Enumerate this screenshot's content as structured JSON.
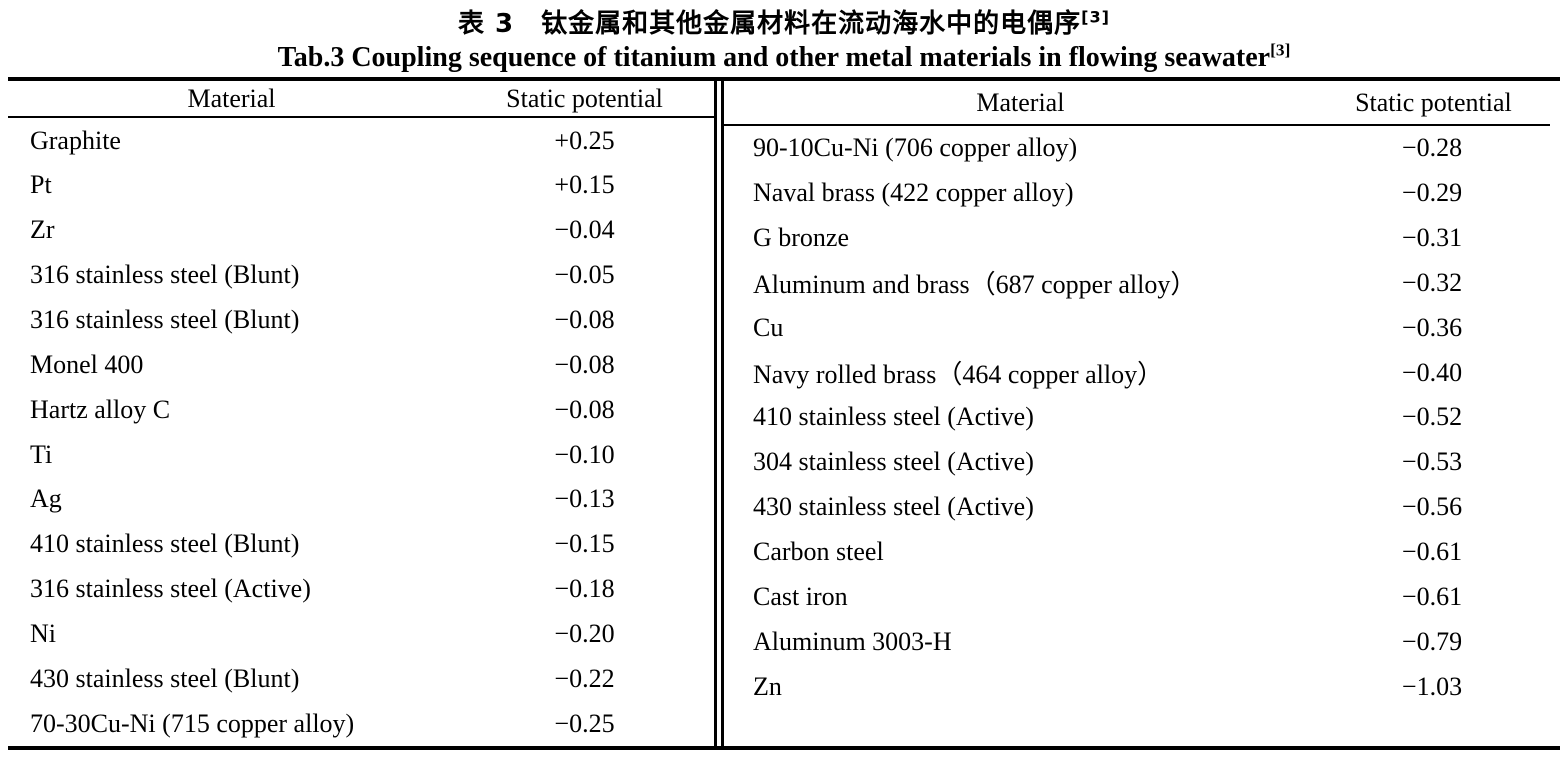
{
  "title": {
    "zh": "表 3　钛金属和其他金属材料在流动海水中的电偶序",
    "zh_ref": "[3]",
    "en": "Tab.3 Coupling sequence of titanium and other metal materials in flowing seawater",
    "en_ref": "[3]"
  },
  "table": {
    "headers": {
      "material": "Material",
      "potential": "Static potential"
    },
    "left_rows": [
      {
        "material": "Graphite",
        "potential": "+0.25"
      },
      {
        "material": "Pt",
        "potential": "+0.15"
      },
      {
        "material": "Zr",
        "potential": "−0.04"
      },
      {
        "material": "316 stainless steel (Blunt)",
        "potential": "−0.05"
      },
      {
        "material": "316 stainless steel (Blunt)",
        "potential": "−0.08"
      },
      {
        "material": "Monel 400",
        "potential": "−0.08"
      },
      {
        "material": "Hartz alloy C",
        "potential": "−0.08"
      },
      {
        "material": "Ti",
        "potential": "−0.10"
      },
      {
        "material": "Ag",
        "potential": "−0.13"
      },
      {
        "material": "410 stainless steel (Blunt)",
        "potential": "−0.15"
      },
      {
        "material": "316 stainless steel (Active)",
        "potential": "−0.18"
      },
      {
        "material": "Ni",
        "potential": "−0.20"
      },
      {
        "material": "430 stainless steel (Blunt)",
        "potential": "−0.22"
      },
      {
        "material": "70-30Cu-Ni (715 copper alloy)",
        "potential": "−0.25"
      }
    ],
    "right_rows": [
      {
        "material": "90-10Cu-Ni (706 copper alloy)",
        "potential": "−0.28"
      },
      {
        "material": "Naval brass (422 copper alloy)",
        "potential": "−0.29"
      },
      {
        "material": "G bronze",
        "potential": "−0.31"
      },
      {
        "material": "Aluminum and brass（687 copper alloy）",
        "potential": "−0.32"
      },
      {
        "material": "Cu",
        "potential": "−0.36"
      },
      {
        "material": "Navy rolled brass（464 copper alloy）",
        "potential": "−0.40"
      },
      {
        "material": "410 stainless steel (Active)",
        "potential": "−0.52"
      },
      {
        "material": "304 stainless steel (Active)",
        "potential": "−0.53"
      },
      {
        "material": "430 stainless steel (Active)",
        "potential": "−0.56"
      },
      {
        "material": "Carbon steel",
        "potential": "−0.61"
      },
      {
        "material": "Cast iron",
        "potential": "−0.61"
      },
      {
        "material": "Aluminum 3003-H",
        "potential": "−0.79"
      },
      {
        "material": "Zn",
        "potential": "−1.03"
      }
    ]
  },
  "colors": {
    "background": "#ffffff",
    "text": "#000000",
    "rule": "#000000"
  }
}
